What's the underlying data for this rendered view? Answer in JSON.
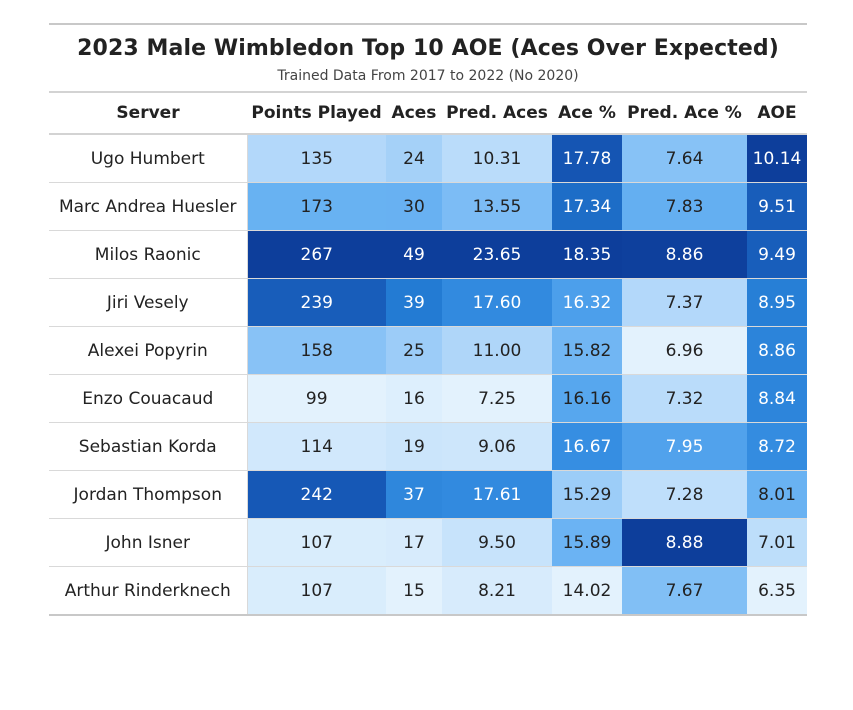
{
  "chart_data": {
    "type": "table",
    "title": "2023 Male Wimbledon Top 10 AOE (Aces Over Expected)",
    "subtitle": "Trained Data From 2017 to 2022 (No 2020)",
    "columns": [
      "Server",
      "Points Played",
      "Aces",
      "Pred. Aces",
      "Ace %",
      "Pred. Ace %",
      "AOE"
    ],
    "rows": [
      [
        "Ugo Humbert",
        "135",
        "24",
        "10.31",
        "17.78",
        "7.64",
        "10.14"
      ],
      [
        "Marc Andrea Huesler",
        "173",
        "30",
        "13.55",
        "17.34",
        "7.83",
        "9.51"
      ],
      [
        "Milos Raonic",
        "267",
        "49",
        "23.65",
        "18.35",
        "8.86",
        "9.49"
      ],
      [
        "Jiri Vesely",
        "239",
        "39",
        "17.60",
        "16.32",
        "7.37",
        "8.95"
      ],
      [
        "Alexei Popyrin",
        "158",
        "25",
        "11.00",
        "15.82",
        "6.96",
        "8.86"
      ],
      [
        "Enzo Couacaud",
        "99",
        "16",
        "7.25",
        "16.16",
        "7.32",
        "8.84"
      ],
      [
        "Sebastian Korda",
        "114",
        "19",
        "9.06",
        "16.67",
        "7.95",
        "8.72"
      ],
      [
        "Jordan Thompson",
        "242",
        "37",
        "17.61",
        "15.29",
        "7.28",
        "8.01"
      ],
      [
        "John Isner",
        "107",
        "17",
        "9.50",
        "15.89",
        "8.88",
        "7.01"
      ],
      [
        "Arthur Rinderknech",
        "107",
        "15",
        "8.21",
        "14.02",
        "7.67",
        "6.35"
      ]
    ],
    "color_scale": [
      "#e3f2fd",
      "#c6e2fb",
      "#9fcef8",
      "#6cb4f3",
      "#3f97e8",
      "#2179d2",
      "#1657b5",
      "#0d3e9b"
    ]
  }
}
